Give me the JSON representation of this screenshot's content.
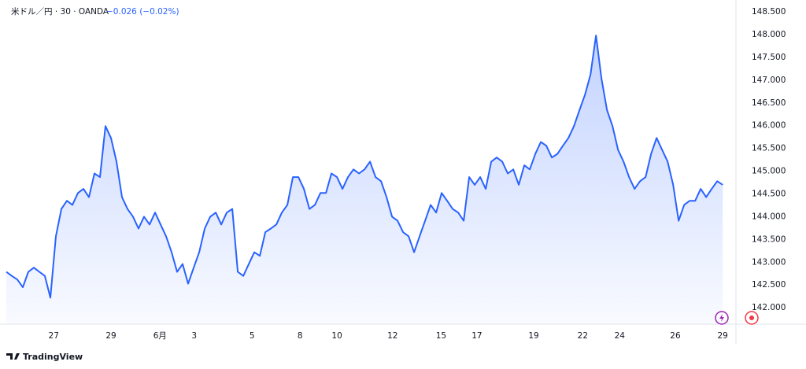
{
  "chart_data": {
    "type": "area",
    "symbol": "米ドル／円 · 30 · OANDA",
    "change": "−0.026 (−0.02%)",
    "brand": "TradingView",
    "series": [
      {
        "color": "#2962ff",
        "values": [
          142.79,
          142.7,
          142.62,
          142.45,
          142.79,
          142.88,
          142.79,
          142.7,
          142.22,
          143.57,
          144.17,
          144.35,
          144.26,
          144.52,
          144.61,
          144.43,
          144.95,
          144.87,
          145.99,
          145.73,
          145.21,
          144.43,
          144.17,
          144.0,
          143.74,
          144.0,
          143.83,
          144.09,
          143.83,
          143.57,
          143.22,
          142.79,
          142.96,
          142.53,
          142.88,
          143.22,
          143.74,
          144.0,
          144.09,
          143.83,
          144.09,
          144.17,
          142.79,
          142.7,
          142.96,
          143.22,
          143.14,
          143.66,
          143.74,
          143.83,
          144.09,
          144.26,
          144.87,
          144.87,
          144.61,
          144.17,
          144.26,
          144.52,
          144.52,
          144.95,
          144.87,
          144.61,
          144.87,
          145.04,
          144.95,
          145.04,
          145.21,
          144.87,
          144.78,
          144.43,
          144.0,
          143.91,
          143.66,
          143.57,
          143.22,
          143.57,
          143.91,
          144.26,
          144.09,
          144.52,
          144.35,
          144.17,
          144.09,
          143.91,
          144.87,
          144.7,
          144.87,
          144.61,
          145.21,
          145.3,
          145.21,
          144.95,
          145.04,
          144.7,
          145.13,
          145.04,
          145.38,
          145.64,
          145.56,
          145.3,
          145.38,
          145.56,
          145.73,
          145.99,
          146.34,
          146.68,
          147.12,
          147.98,
          147.03,
          146.34,
          145.99,
          145.47,
          145.21,
          144.87,
          144.61,
          144.78,
          144.87,
          145.38,
          145.73,
          145.47,
          145.21,
          144.7,
          143.91,
          144.26,
          144.35,
          144.35,
          144.61,
          144.43,
          144.61,
          144.78,
          144.7
        ]
      }
    ],
    "xlim": [
      0,
      132.4
    ],
    "xticks": [
      {
        "value": 8.6,
        "label": "27"
      },
      {
        "value": 19,
        "label": "29"
      },
      {
        "value": 27.9,
        "label": "6月"
      },
      {
        "value": 34.1,
        "label": "3"
      },
      {
        "value": 44.6,
        "label": "5"
      },
      {
        "value": 53.3,
        "label": "8"
      },
      {
        "value": 60,
        "label": "10"
      },
      {
        "value": 70.1,
        "label": "12"
      },
      {
        "value": 78.9,
        "label": "15"
      },
      {
        "value": 85.4,
        "label": "17"
      },
      {
        "value": 95.7,
        "label": "19"
      },
      {
        "value": 104.6,
        "label": "22"
      },
      {
        "value": 111.3,
        "label": "24"
      },
      {
        "value": 121.4,
        "label": "26"
      },
      {
        "value": 130,
        "label": "29"
      }
    ],
    "ylim": [
      141.64,
      148.76
    ],
    "yticks": [
      {
        "value": 142,
        "label": "142.000"
      },
      {
        "value": 142.5,
        "label": "142.500"
      },
      {
        "value": 143,
        "label": "143.000"
      },
      {
        "value": 143.5,
        "label": "143.500"
      },
      {
        "value": 144,
        "label": "144.000"
      },
      {
        "value": 144.5,
        "label": "144.500"
      },
      {
        "value": 145,
        "label": "145.000"
      },
      {
        "value": 145.5,
        "label": "145.500"
      },
      {
        "value": 146,
        "label": "146.000"
      },
      {
        "value": 146.5,
        "label": "146.500"
      },
      {
        "value": 147,
        "label": "147.000"
      },
      {
        "value": 147.5,
        "label": "147.500"
      },
      {
        "value": 148,
        "label": "148.000"
      },
      {
        "value": 148.5,
        "label": "148.500"
      }
    ]
  }
}
